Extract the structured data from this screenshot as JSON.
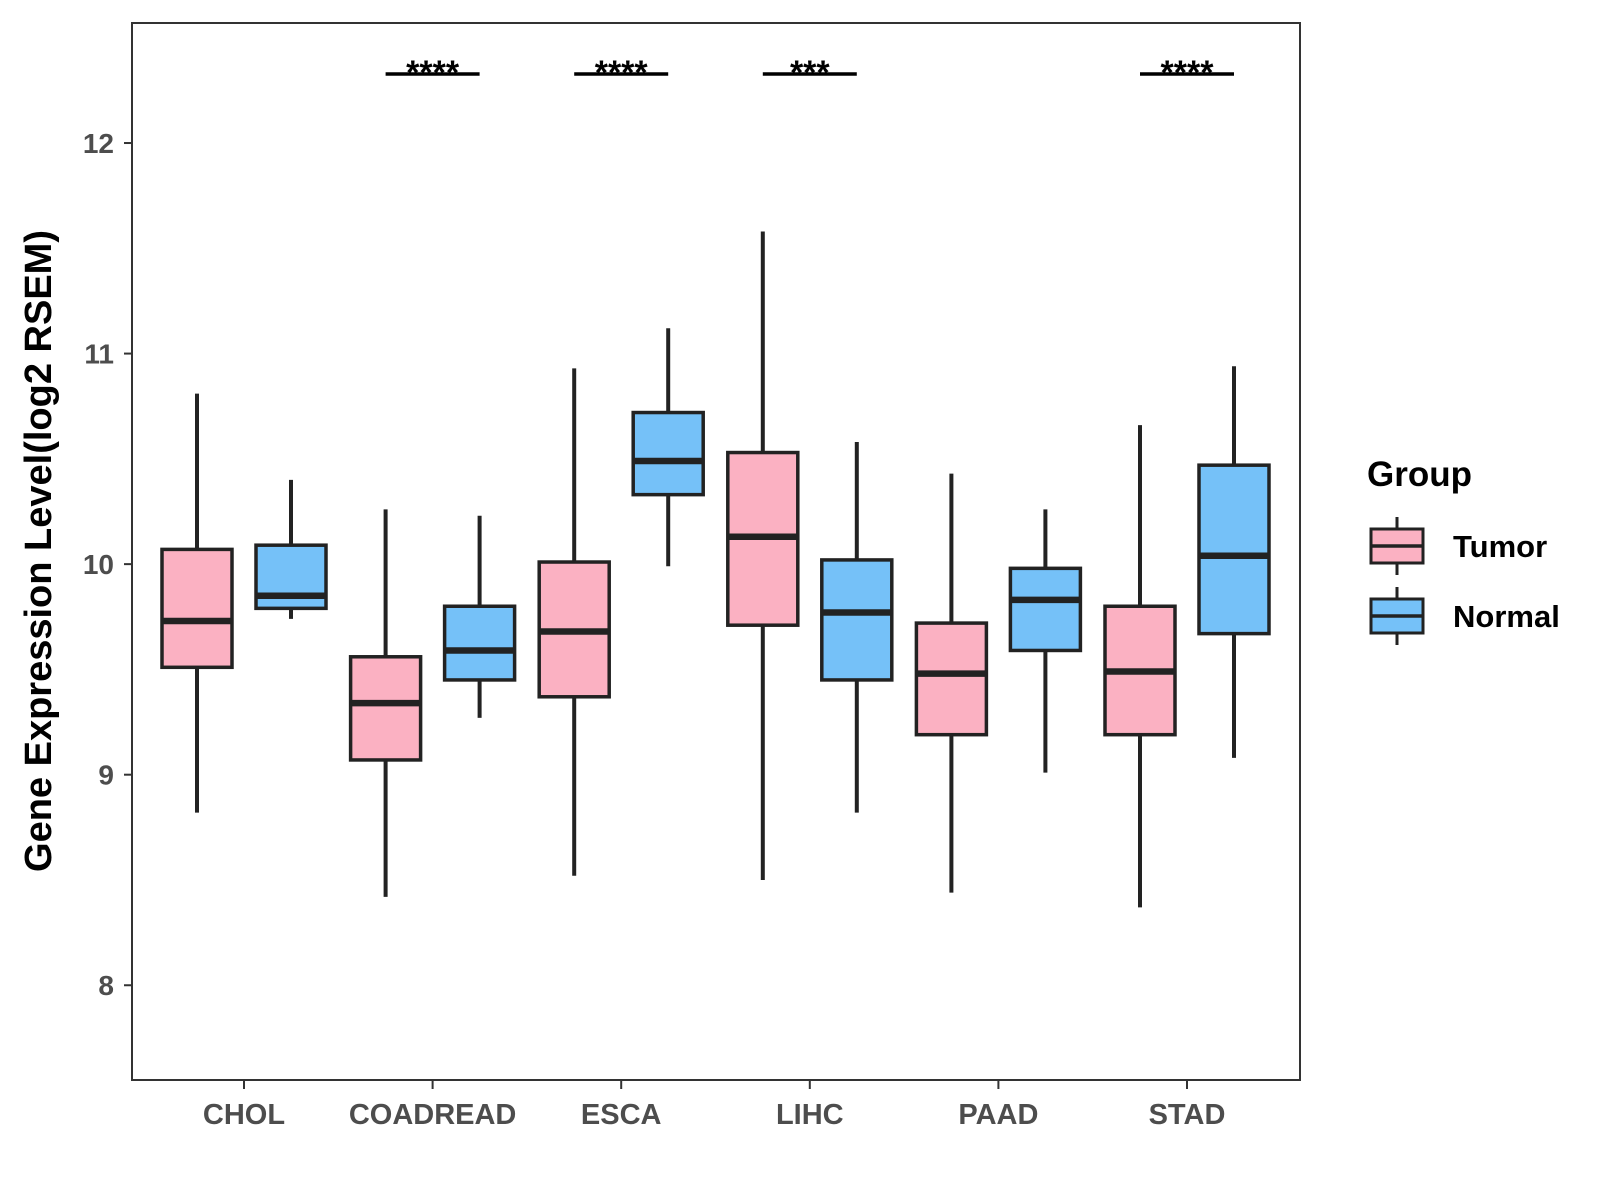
{
  "chart_data": {
    "type": "boxplot",
    "ylabel": "Gene Expression Level(log2 RSEM)",
    "ylim": [
      7.55,
      12.57
    ],
    "yticks": [
      8,
      9,
      10,
      11,
      12
    ],
    "categories": [
      "CHOL",
      "COADREAD",
      "ESCA",
      "LIHC",
      "PAAD",
      "STAD"
    ],
    "legend": {
      "title": "Group",
      "position": "right",
      "entries": [
        {
          "name": "Tumor",
          "color": "#FBB1C2"
        },
        {
          "name": "Normal",
          "color": "#75C1F8"
        }
      ]
    },
    "series": [
      {
        "name": "Tumor",
        "color": "#FBB1C2",
        "boxes": [
          {
            "min": 8.82,
            "q1": 9.51,
            "median": 9.73,
            "q3": 10.07,
            "max": 10.81
          },
          {
            "min": 8.42,
            "q1": 9.07,
            "median": 9.34,
            "q3": 9.56,
            "max": 10.26
          },
          {
            "min": 8.52,
            "q1": 9.37,
            "median": 9.68,
            "q3": 10.01,
            "max": 10.93
          },
          {
            "min": 8.5,
            "q1": 9.71,
            "median": 10.13,
            "q3": 10.53,
            "max": 11.58
          },
          {
            "min": 8.44,
            "q1": 9.19,
            "median": 9.48,
            "q3": 9.72,
            "max": 10.43
          },
          {
            "min": 8.37,
            "q1": 9.19,
            "median": 9.49,
            "q3": 9.8,
            "max": 10.66
          }
        ]
      },
      {
        "name": "Normal",
        "color": "#75C1F8",
        "boxes": [
          {
            "min": 9.74,
            "q1": 9.79,
            "median": 9.85,
            "q3": 10.09,
            "max": 10.4
          },
          {
            "min": 9.27,
            "q1": 9.45,
            "median": 9.59,
            "q3": 9.8,
            "max": 10.23
          },
          {
            "min": 9.99,
            "q1": 10.33,
            "median": 10.49,
            "q3": 10.72,
            "max": 11.12
          },
          {
            "min": 8.82,
            "q1": 9.45,
            "median": 9.77,
            "q3": 10.02,
            "max": 10.58
          },
          {
            "min": 9.01,
            "q1": 9.59,
            "median": 9.83,
            "q3": 9.98,
            "max": 10.26
          },
          {
            "min": 9.08,
            "q1": 9.67,
            "median": 10.04,
            "q3": 10.47,
            "max": 10.94
          }
        ]
      }
    ],
    "significance": [
      {
        "category": "COADREAD",
        "label": "****"
      },
      {
        "category": "ESCA",
        "label": "****"
      },
      {
        "category": "LIHC",
        "label": "***"
      },
      {
        "category": "STAD",
        "label": "****"
      }
    ]
  }
}
